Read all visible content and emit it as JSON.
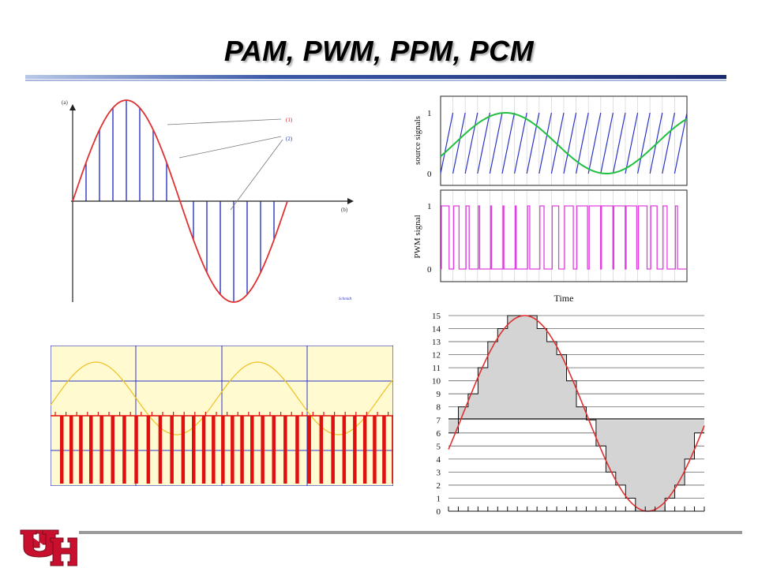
{
  "slide": {
    "title": "PAM, PWM, PPM, PCM"
  },
  "pam_figure": {
    "label_a": "(a)",
    "label_b": "(b)",
    "callout_1": "(1)",
    "callout_2": "(2)",
    "credit": "Schmidt",
    "colors": {
      "signal": "#e03030",
      "samples": "#2a35c8"
    }
  },
  "pwm_figure": {
    "top_ylabel": "source signals",
    "bottom_ylabel": "PWM signal",
    "xlabel": "Time",
    "top_ticks": [
      "1",
      "0"
    ],
    "bottom_ticks": [
      "1",
      "0"
    ],
    "colors": {
      "sawtooth": "#2a35c8",
      "sine": "#20c040",
      "pwm": "#e040e0"
    }
  },
  "ppm_figure": {
    "colors": {
      "background": "#fffad0",
      "grid": "#2a35c8",
      "sine": "#f0c020",
      "pulses": "#e01010"
    }
  },
  "pcm_figure": {
    "levels": [
      "0",
      "1",
      "2",
      "3",
      "4",
      "5",
      "6",
      "7",
      "8",
      "9",
      "10",
      "11",
      "12",
      "13",
      "14",
      "15"
    ],
    "colors": {
      "signal": "#e03030",
      "fill": "#d4d4d4"
    }
  },
  "logo": {
    "text": "UH",
    "color": "#c8102e"
  }
}
